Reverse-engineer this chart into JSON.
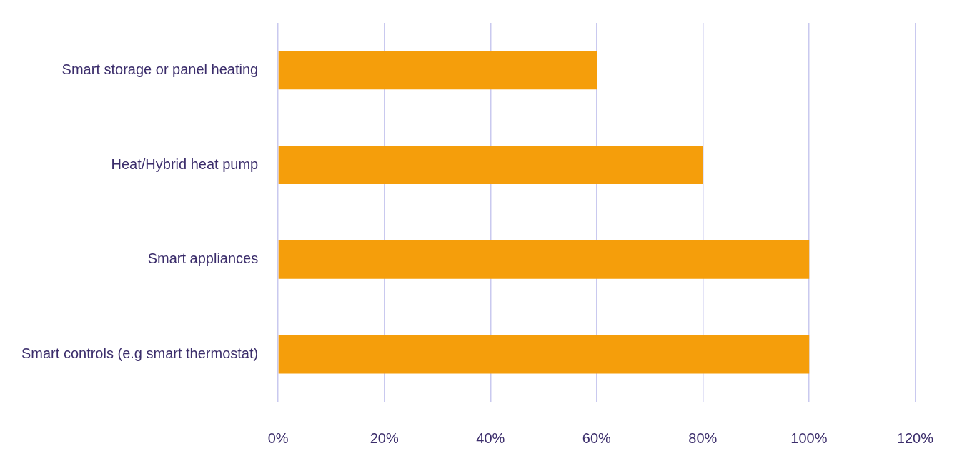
{
  "chart_data": {
    "type": "bar",
    "orientation": "horizontal",
    "categories": [
      "Smart storage or panel heating",
      "Heat/Hybrid heat pump",
      "Smart appliances",
      "Smart controls (e.g smart thermostat)"
    ],
    "values": [
      60,
      80,
      100,
      100
    ],
    "color": "#f59e0b",
    "xlim": [
      0,
      120
    ],
    "xticks": [
      {
        "value": 0,
        "label": "0%"
      },
      {
        "value": 20,
        "label": "20%"
      },
      {
        "value": 40,
        "label": "40%"
      },
      {
        "value": 60,
        "label": "60%"
      },
      {
        "value": 80,
        "label": "80%"
      },
      {
        "value": 100,
        "label": "100%"
      },
      {
        "value": 120,
        "label": "120%"
      }
    ],
    "grid": "x",
    "legend": false
  }
}
